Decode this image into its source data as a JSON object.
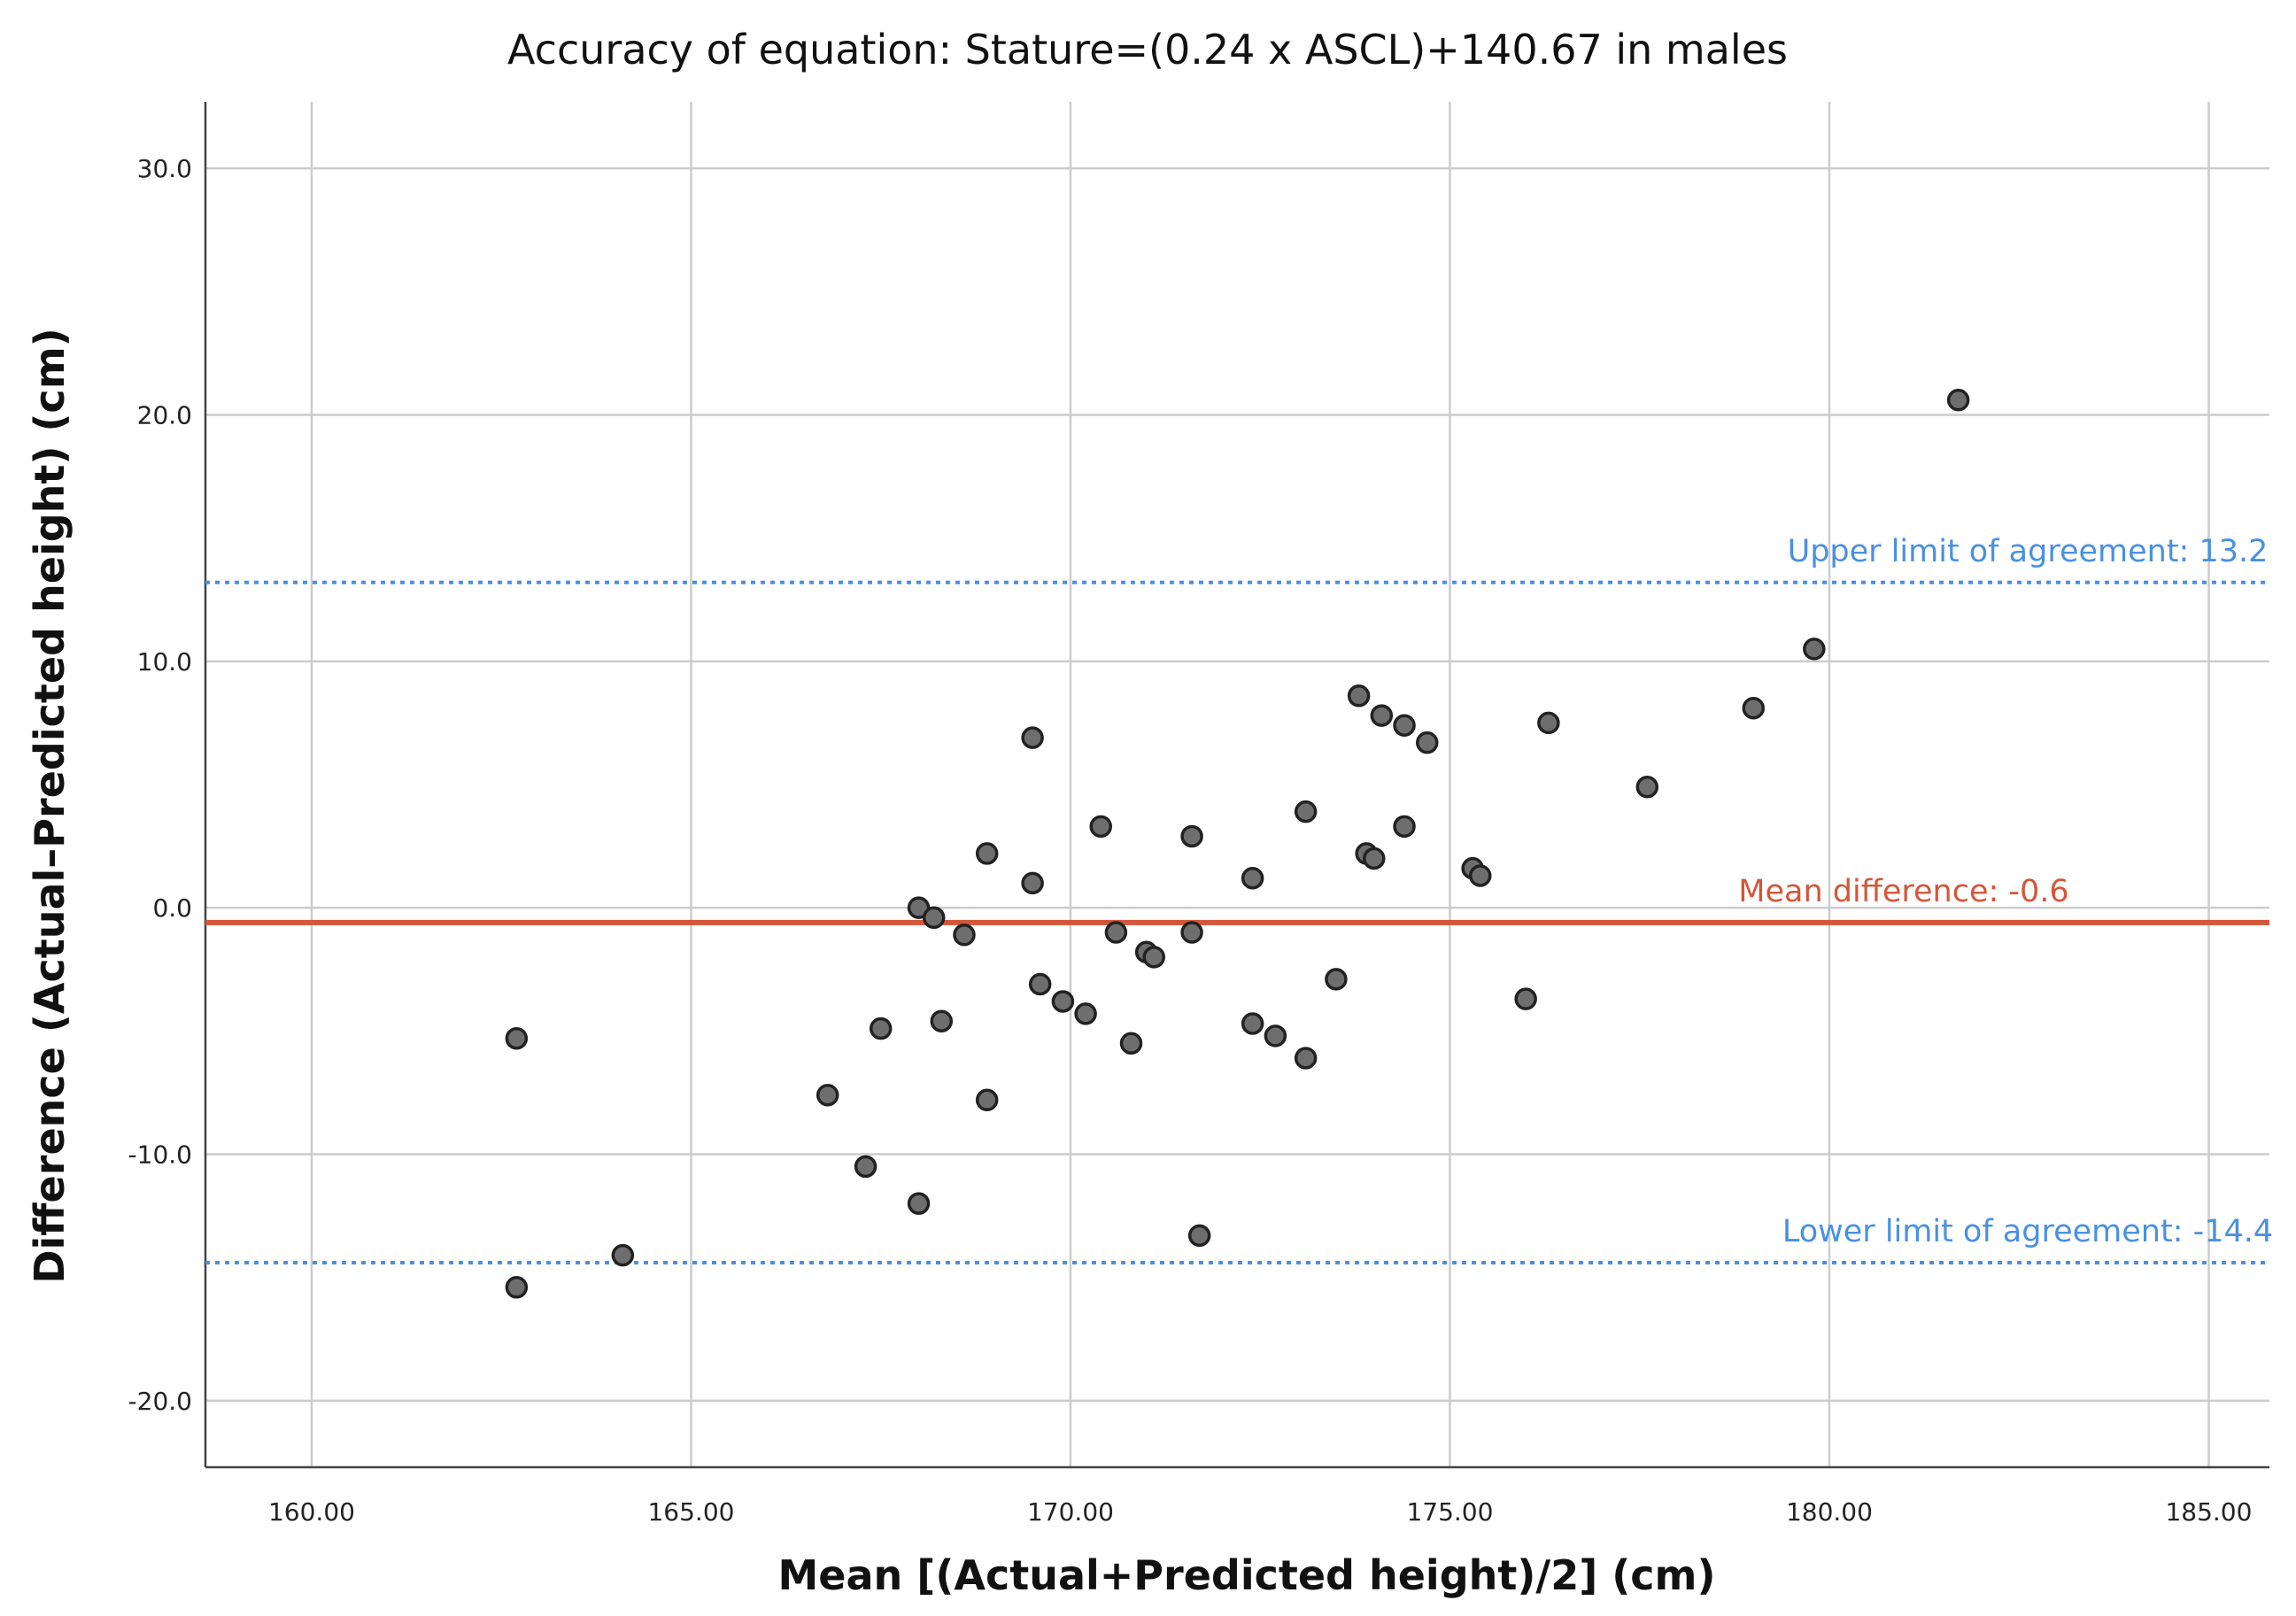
{
  "chart_data": {
    "type": "scatter",
    "title": "Accuracy of equation: Stature=(0.24 x ASCL)+140.67 in males",
    "xlabel": "Mean [(Actual+Predicted height)/2] (cm)",
    "ylabel": "Difference (Actual–Predicted height) (cm)",
    "xlim": [
      158.6,
      185.8
    ],
    "ylim": [
      -22.7,
      32.7
    ],
    "grid": true,
    "x_ticks": [
      160,
      165,
      170,
      175,
      180,
      185
    ],
    "x_tick_labels": [
      "160.00",
      "165.00",
      "170.00",
      "175.00",
      "180.00",
      "185.00"
    ],
    "y_ticks": [
      30,
      20,
      10,
      0,
      -10,
      -20
    ],
    "y_tick_labels": [
      "30.0",
      "20.0",
      "10.0",
      "0.0",
      "-10.0",
      "-20.0"
    ],
    "reference_lines": [
      {
        "name": "upper-limit",
        "y": 13.2,
        "label": "Upper limit of agreement: 13.2",
        "style": "dotted",
        "color": "#4a90e2"
      },
      {
        "name": "mean-difference",
        "y": -0.6,
        "label": "Mean difference: -0.6",
        "style": "solid",
        "color": "#d4563a"
      },
      {
        "name": "lower-limit",
        "y": -14.4,
        "label": "Lower limit of agreement: -14.4",
        "style": "dotted",
        "color": "#4a90e2"
      }
    ],
    "marker_color": "#6e6e6e",
    "marker_edge_color": "#222222",
    "series": [
      {
        "name": "males",
        "points": [
          [
            162.7,
            -5.3
          ],
          [
            162.7,
            -15.4
          ],
          [
            164.1,
            -14.1
          ],
          [
            166.8,
            -7.6
          ],
          [
            167.3,
            -10.5
          ],
          [
            167.5,
            -4.9
          ],
          [
            168.0,
            -12.0
          ],
          [
            168.0,
            0.0
          ],
          [
            168.2,
            -0.4
          ],
          [
            168.3,
            -4.6
          ],
          [
            168.6,
            -1.1
          ],
          [
            168.9,
            2.2
          ],
          [
            168.9,
            -7.8
          ],
          [
            169.5,
            1.0
          ],
          [
            169.5,
            6.9
          ],
          [
            169.6,
            -3.1
          ],
          [
            169.9,
            -3.8
          ],
          [
            170.2,
            -4.3
          ],
          [
            170.4,
            3.3
          ],
          [
            170.6,
            -1.0
          ],
          [
            170.8,
            -5.5
          ],
          [
            171.0,
            -1.8
          ],
          [
            171.1,
            -2.0
          ],
          [
            171.6,
            -1.0
          ],
          [
            171.6,
            2.9
          ],
          [
            171.7,
            -13.3
          ],
          [
            172.4,
            -4.7
          ],
          [
            172.4,
            1.2
          ],
          [
            172.7,
            -5.2
          ],
          [
            173.1,
            -6.1
          ],
          [
            173.1,
            3.9
          ],
          [
            173.5,
            -2.9
          ],
          [
            173.8,
            8.6
          ],
          [
            173.9,
            2.2
          ],
          [
            174.0,
            2.0
          ],
          [
            174.1,
            7.8
          ],
          [
            174.4,
            7.4
          ],
          [
            174.4,
            3.3
          ],
          [
            174.7,
            6.7
          ],
          [
            175.3,
            1.6
          ],
          [
            175.4,
            1.3
          ],
          [
            176.0,
            -3.7
          ],
          [
            176.3,
            7.5
          ],
          [
            177.6,
            4.9
          ],
          [
            179.0,
            8.1
          ],
          [
            179.8,
            10.5
          ],
          [
            181.7,
            20.6
          ]
        ]
      }
    ]
  }
}
